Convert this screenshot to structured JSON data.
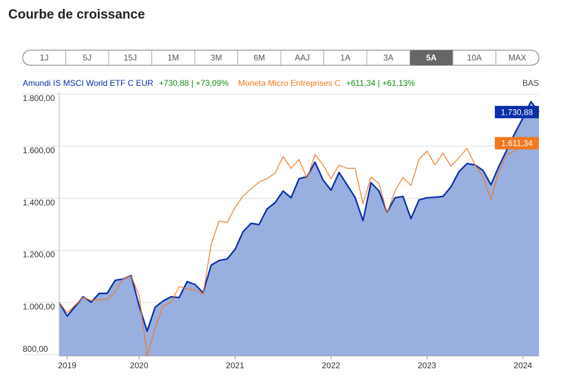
{
  "title": "Courbe de croissance",
  "periods": [
    "1J",
    "5J",
    "15J",
    "1M",
    "3M",
    "6M",
    "AAJ",
    "1A",
    "3A",
    "5A",
    "10A",
    "MAX"
  ],
  "active_period": "5A",
  "chart_data": {
    "type": "line",
    "corner_label": "BAS",
    "categories": [
      null,
      "2019",
      null,
      null,
      null,
      null,
      null,
      null,
      null,
      null,
      "2020",
      null,
      null,
      null,
      null,
      null,
      null,
      null,
      null,
      null,
      null,
      null,
      "2021",
      null,
      null,
      null,
      null,
      null,
      null,
      null,
      null,
      null,
      null,
      null,
      "2022",
      null,
      null,
      null,
      null,
      null,
      null,
      null,
      null,
      null,
      null,
      null,
      "2023",
      null,
      null,
      null,
      null,
      null,
      null,
      null,
      null,
      null,
      null,
      null,
      "2024",
      null,
      null
    ],
    "series": [
      {
        "name": "Amundi IS MSCI World ETF C EUR",
        "change": "+730,88 | +73,09%",
        "color": "#0a2fa8",
        "fill": "#98afe0",
        "values": [
          1000,
          948,
          985,
          1022,
          1001,
          1035,
          1035,
          1085,
          1090,
          1103,
          987,
          890,
          982,
          1006,
          1022,
          1019,
          1080,
          1069,
          1037,
          1143,
          1161,
          1167,
          1204,
          1272,
          1304,
          1299,
          1359,
          1383,
          1428,
          1402,
          1475,
          1483,
          1539,
          1470,
          1431,
          1499,
          1452,
          1404,
          1314,
          1460,
          1428,
          1346,
          1402,
          1407,
          1322,
          1394,
          1402,
          1404,
          1407,
          1444,
          1502,
          1533,
          1528,
          1507,
          1452,
          1523,
          1586,
          1650,
          1708,
          1771,
          1730.88
        ],
        "value_labels": {
          "60": "1.730,88"
        }
      },
      {
        "name": "Moneta Micro Entreprises C",
        "change": "+611,34 | +61,13%",
        "color": "#f07820",
        "values": [
          1000,
          961,
          990,
          1019,
          1008,
          1011,
          1011,
          1040,
          1090,
          1101,
          1027,
          795,
          903,
          987,
          1001,
          1061,
          1053,
          1048,
          1032,
          1222,
          1312,
          1307,
          1365,
          1409,
          1436,
          1462,
          1475,
          1497,
          1560,
          1515,
          1549,
          1475,
          1568,
          1528,
          1475,
          1528,
          1515,
          1515,
          1380,
          1481,
          1457,
          1344,
          1428,
          1481,
          1449,
          1549,
          1581,
          1528,
          1573,
          1523,
          1555,
          1592,
          1528,
          1483,
          1396,
          1502,
          1568,
          1581,
          1613,
          1634,
          1611.34
        ],
        "value_labels": {
          "60": "1.611,34"
        }
      }
    ],
    "change_color": "#1a8a1a",
    "ylim": [
      795,
      1805
    ],
    "yticks": [
      {
        "value": 800,
        "label": "800,00"
      },
      {
        "value": 1000,
        "label": "1.000,00"
      },
      {
        "value": 1200,
        "label": "1.200,00"
      },
      {
        "value": 1400,
        "label": "1.400,00"
      },
      {
        "value": 1600,
        "label": "1.600,00"
      },
      {
        "value": 1800,
        "label": "1.800,00"
      }
    ],
    "grid": true
  }
}
